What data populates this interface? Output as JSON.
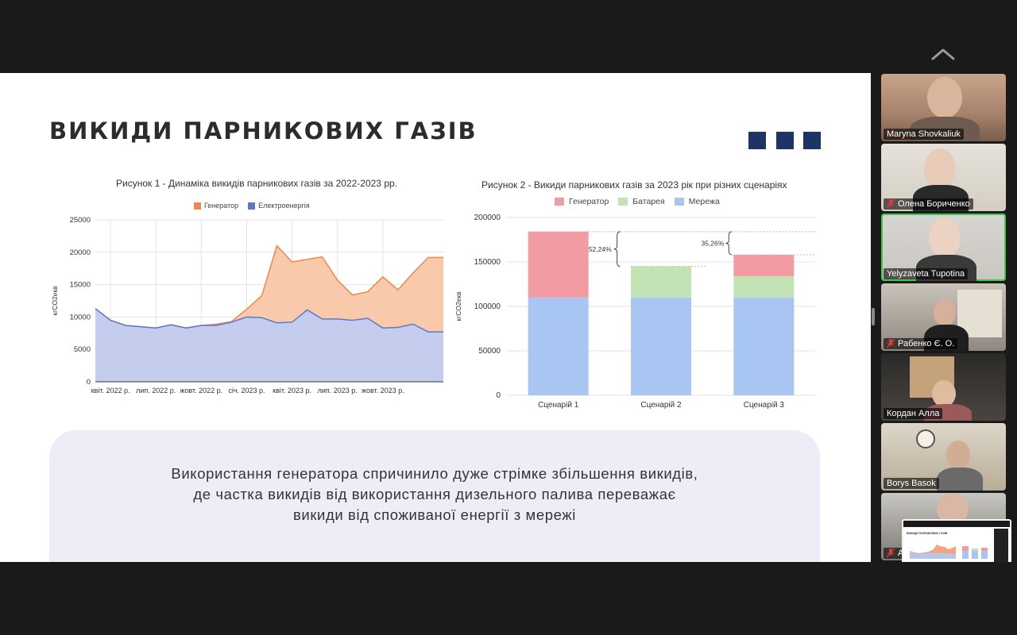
{
  "slide": {
    "title": "ВИКИДИ ПАРНИКОВИХ ГАЗІВ",
    "summary": [
      "Використання генератора спричинило дуже стрімке збільшення викидів,",
      "де частка викидів від використання дизельного палива переважає",
      "викиди від споживаної енергії з мережі"
    ]
  },
  "colors": {
    "accent_squares": "#1e3464",
    "generator": "#f4a67a",
    "generator_line": "#e98a4e",
    "grid_series": "#b8c5ea",
    "grid_line": "#5b79c8",
    "gen2": "#f29ba2",
    "battery": "#c3e3b4",
    "network": "#a9c5f2"
  },
  "chart_data": [
    {
      "type": "area",
      "title": "Рисунок 1 - Динаміка викидів парникових газів за 2022-2023 рр.",
      "ylabel": "кгCO2екв",
      "xlabel": "",
      "ylim": [
        0,
        25000
      ],
      "yticks": [
        "0",
        "5000",
        "10000",
        "15000",
        "20000",
        "25000"
      ],
      "xticks": [
        "квіт. 2022 р.",
        "лип. 2022 р.",
        "жовт. 2022 р.",
        "січ. 2023 р.",
        "квіт. 2023 р.",
        "лип. 2023 р.",
        "жовт. 2023 р."
      ],
      "x": [
        "берез. 2022",
        "квіт. 2022",
        "трав. 2022",
        "черв. 2022",
        "лип. 2022",
        "серп. 2022",
        "верес. 2022",
        "жовт. 2022",
        "листоп. 2022",
        "груд. 2022",
        "січ. 2023",
        "лют. 2023",
        "берез. 2023",
        "квіт. 2023",
        "трав. 2023",
        "черв. 2023",
        "лип. 2023",
        "серп. 2023",
        "верес. 2023",
        "жовт. 2023",
        "листоп. 2023",
        "груд. 2023",
        "січ. 2024",
        "лют. 2024"
      ],
      "series": [
        {
          "name": "Генератор",
          "values": [
            11300,
            9500,
            8700,
            8500,
            8300,
            8800,
            8300,
            8700,
            8900,
            9300,
            11200,
            13300,
            21000,
            18500,
            18900,
            19300,
            15700,
            13400,
            13900,
            16200,
            14200,
            16800,
            19200,
            19200
          ]
        },
        {
          "name": "Електроенергія",
          "values": [
            11300,
            9500,
            8700,
            8500,
            8300,
            8800,
            8300,
            8700,
            8700,
            9200,
            10000,
            9900,
            9100,
            9200,
            11100,
            9700,
            9700,
            9500,
            9800,
            8300,
            8400,
            8900,
            7700,
            7700
          ]
        }
      ],
      "legend": "top"
    },
    {
      "type": "bar",
      "stacked": true,
      "title": "Рисунок 2 - Викиди парникових газів за 2023 рік при різних сценаріях",
      "ylabel": "кгCO2екв",
      "ylim": [
        0,
        200000
      ],
      "yticks": [
        "0",
        "50000",
        "100000",
        "150000",
        "200000"
      ],
      "categories": [
        "Сценарій 1",
        "Сценарій 2",
        "Сценарій 3"
      ],
      "series": [
        {
          "name": "Мережа",
          "values": [
            110000,
            110000,
            110000
          ]
        },
        {
          "name": "Батарея",
          "values": [
            0,
            35000,
            24000
          ]
        },
        {
          "name": "Генератор",
          "values": [
            74000,
            0,
            24000
          ]
        }
      ],
      "legend_order": [
        "Генератор",
        "Батарея",
        "Мережа"
      ],
      "annotations": [
        "52,24%",
        "35,26%"
      ],
      "legend": "top"
    }
  ],
  "participants": [
    {
      "name": "Maryna Shovkaliuk",
      "muted": false,
      "active": false
    },
    {
      "name": "Олена Бориченко",
      "muted": true,
      "active": false
    },
    {
      "name": "Yelyzaveta Tupotina",
      "muted": false,
      "active": true
    },
    {
      "name": "Рабенко Є. О.",
      "muted": true,
      "active": false
    },
    {
      "name": "Кордан Алла",
      "muted": false,
      "active": false
    },
    {
      "name": "Borys Basok",
      "muted": false,
      "active": false
    },
    {
      "name": "А",
      "muted": true,
      "active": false
    }
  ],
  "thumbnail": {
    "title": "ВИКИДИ ПАРНИКОВИХ ГАЗІВ"
  }
}
